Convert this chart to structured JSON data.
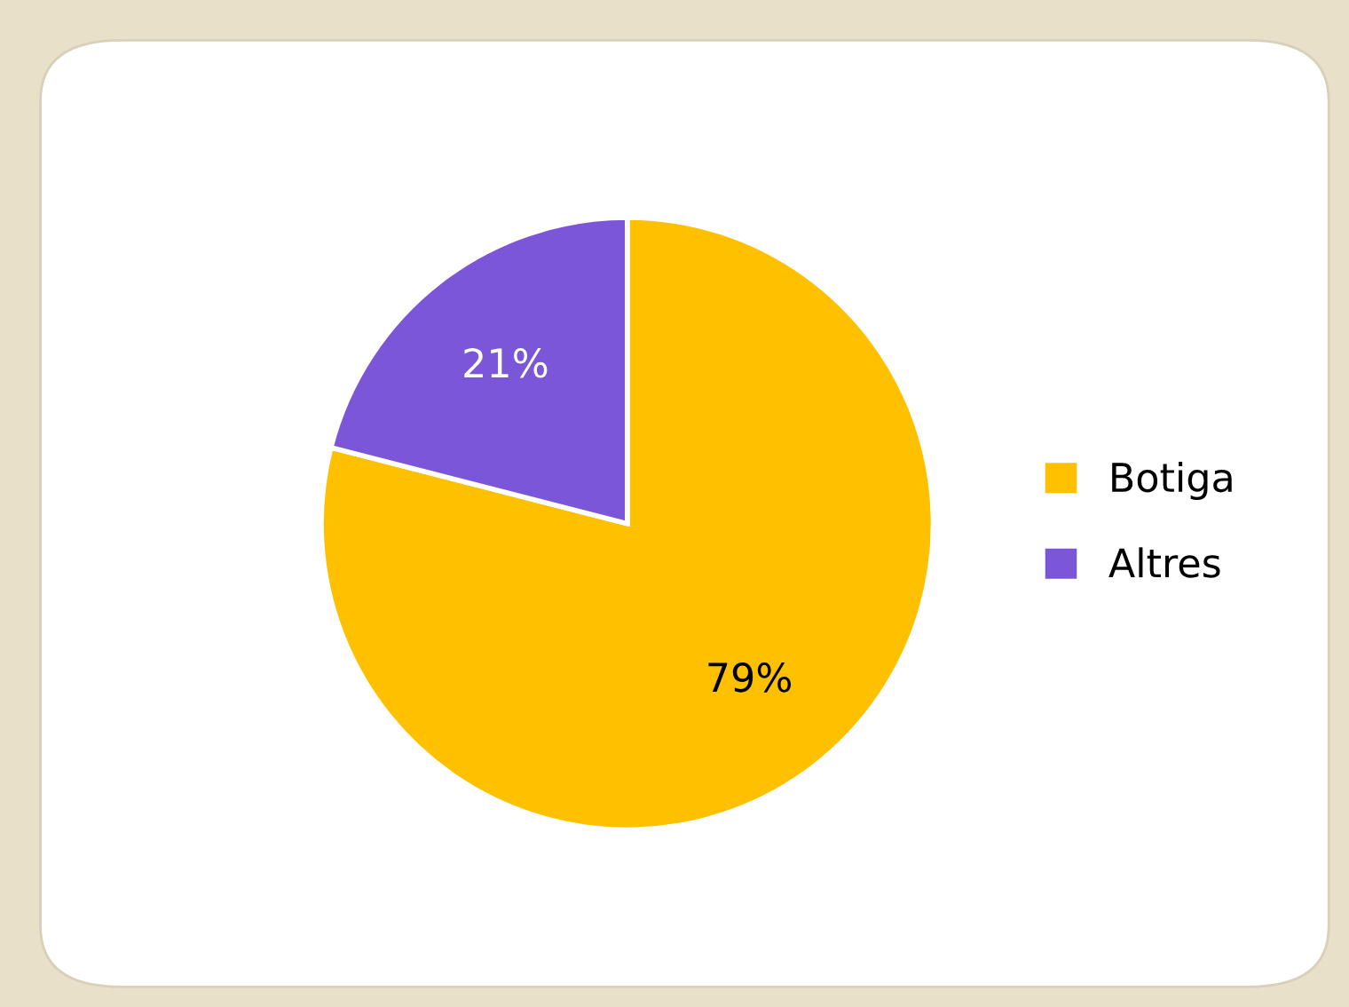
{
  "chart_data": {
    "type": "pie",
    "categories": [
      "Botiga",
      "Altres"
    ],
    "values": [
      79,
      21
    ],
    "colors": [
      "#ffc000",
      "#7b56d8"
    ],
    "value_labels": [
      "79%",
      "21%"
    ],
    "legend": "right"
  }
}
